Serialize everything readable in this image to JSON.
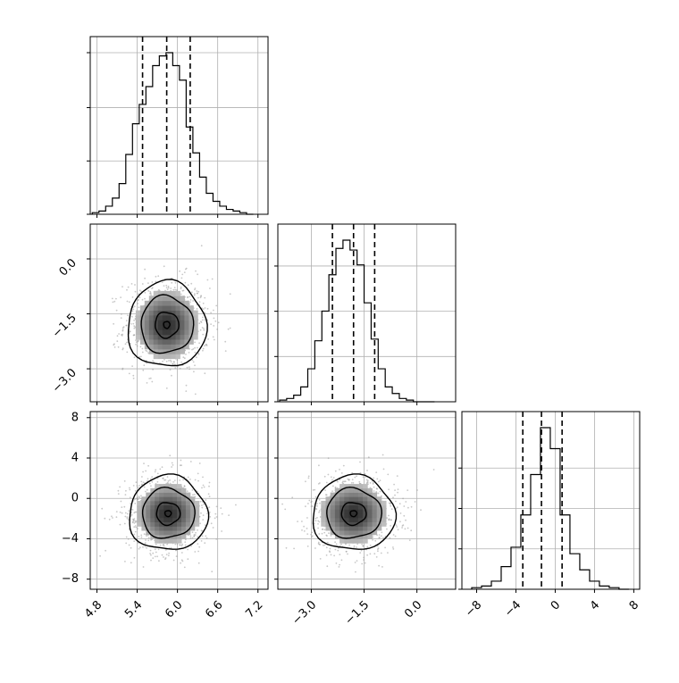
{
  "chart_data": {
    "type": "corner",
    "grid": true,
    "panels": [
      {
        "type": "histogram",
        "row": 0,
        "col": 0,
        "variable": 0,
        "xlim": [
          4.7,
          7.35
        ],
        "bin_edges": [
          4.73,
          4.83,
          4.93,
          5.03,
          5.13,
          5.23,
          5.33,
          5.43,
          5.53,
          5.63,
          5.73,
          5.83,
          5.93,
          6.03,
          6.13,
          6.23,
          6.33,
          6.43,
          6.53,
          6.63,
          6.73,
          6.83,
          6.93,
          7.03,
          7.13
        ],
        "counts": [
          1,
          2,
          5,
          10,
          19,
          37,
          56,
          68,
          79,
          92,
          98,
          100,
          92,
          83,
          54,
          38,
          23,
          13,
          8,
          5,
          3,
          2,
          1,
          0
        ],
        "quantiles": [
          5.48,
          5.84,
          6.19
        ],
        "xticks": [
          4.8,
          5.4,
          6.0,
          6.6,
          7.2
        ],
        "yticks_frac": [
          0,
          0.33,
          0.66,
          1.0
        ]
      },
      {
        "type": "histogram",
        "row": 1,
        "col": 1,
        "variable": 1,
        "xlim": [
          -3.95,
          1.1
        ],
        "bin_edges": [
          -3.9,
          -3.7,
          -3.5,
          -3.3,
          -3.1,
          -2.9,
          -2.7,
          -2.5,
          -2.3,
          -2.1,
          -1.9,
          -1.7,
          -1.5,
          -1.3,
          -1.1,
          -0.9,
          -0.7,
          -0.5,
          -0.3,
          -0.1,
          0.1,
          0.3,
          0.5
        ],
        "counts": [
          1,
          2,
          4,
          9,
          20,
          37,
          55,
          77,
          93,
          98,
          92,
          83,
          60,
          38,
          20,
          9,
          5,
          2,
          1,
          0,
          0,
          0
        ],
        "quantiles": [
          -2.4,
          -1.8,
          -1.2
        ],
        "xticks": [
          -3.0,
          -1.5,
          0.0
        ],
        "yticks_frac": [
          0,
          0.28,
          0.56,
          0.84
        ]
      },
      {
        "type": "histogram",
        "row": 2,
        "col": 2,
        "variable": 2,
        "xlim": [
          -9.5,
          8.6
        ],
        "bin_edges": [
          -8.5,
          -7.5,
          -6.5,
          -5.5,
          -4.5,
          -3.5,
          -2.5,
          -1.5,
          -0.5,
          0.5,
          1.5,
          2.5,
          3.5,
          4.5,
          5.5,
          6.5,
          7.5
        ],
        "counts": [
          1,
          2,
          5,
          14,
          26,
          46,
          71,
          100,
          87,
          46,
          22,
          12,
          5,
          2,
          1,
          0
        ],
        "quantiles": [
          -3.3,
          -1.4,
          0.7
        ],
        "xticks": [
          -8,
          -4,
          0,
          4,
          8
        ],
        "yticks_frac": [
          0,
          0.25,
          0.5,
          0.75
        ]
      },
      {
        "type": "scatter2d",
        "row": 1,
        "col": 0,
        "xvar": 0,
        "yvar": 1,
        "xlim": [
          4.7,
          7.35
        ],
        "ylim": [
          -3.9,
          0.95
        ],
        "center": [
          5.84,
          -1.8
        ],
        "spread": [
          0.3,
          0.6
        ],
        "contour_levels": [
          0.12,
          0.45,
          1.0,
          1.5
        ],
        "yticks": [
          0.0,
          -1.5,
          -3.0
        ]
      },
      {
        "type": "scatter2d",
        "row": 2,
        "col": 0,
        "xvar": 0,
        "yvar": 2,
        "xlim": [
          4.7,
          7.35
        ],
        "ylim": [
          -9.0,
          8.6
        ],
        "center": [
          5.86,
          -1.5
        ],
        "spread": [
          0.3,
          1.9
        ],
        "contour_levels": [
          0.12,
          0.45,
          1.0,
          1.5
        ],
        "xticks": [
          4.8,
          5.4,
          6.0,
          6.6,
          7.2
        ],
        "yticks": [
          8,
          4,
          0,
          -4,
          -8
        ]
      },
      {
        "type": "scatter2d",
        "row": 2,
        "col": 1,
        "xvar": 1,
        "yvar": 2,
        "xlim": [
          -3.95,
          1.1
        ],
        "ylim": [
          -9.0,
          8.6
        ],
        "center": [
          -1.8,
          -1.5
        ],
        "spread": [
          0.6,
          1.9
        ],
        "contour_levels": [
          0.12,
          0.45,
          1.0,
          1.5
        ],
        "xticks": [
          -3.0,
          -1.5,
          0.0
        ]
      }
    ],
    "tick_labels": {
      "col0_x": [
        "4.8",
        "5.4",
        "6.0",
        "6.6",
        "7.2"
      ],
      "col1_x": [
        "−3.0",
        "−1.5",
        "0.0"
      ],
      "col2_x": [
        "−8",
        "−4",
        "0",
        "4",
        "8"
      ],
      "row1_y": [
        "0.0",
        "−1.5",
        "−3.0"
      ],
      "row2_y": [
        "8",
        "4",
        "0",
        "−4",
        "−8"
      ]
    },
    "colors": {
      "hist_line": "#000000",
      "quantile_line": "#000000",
      "scatter_point": "#9a9a9a",
      "grid": "#b0b0b0",
      "density_dark": "#000000"
    }
  }
}
